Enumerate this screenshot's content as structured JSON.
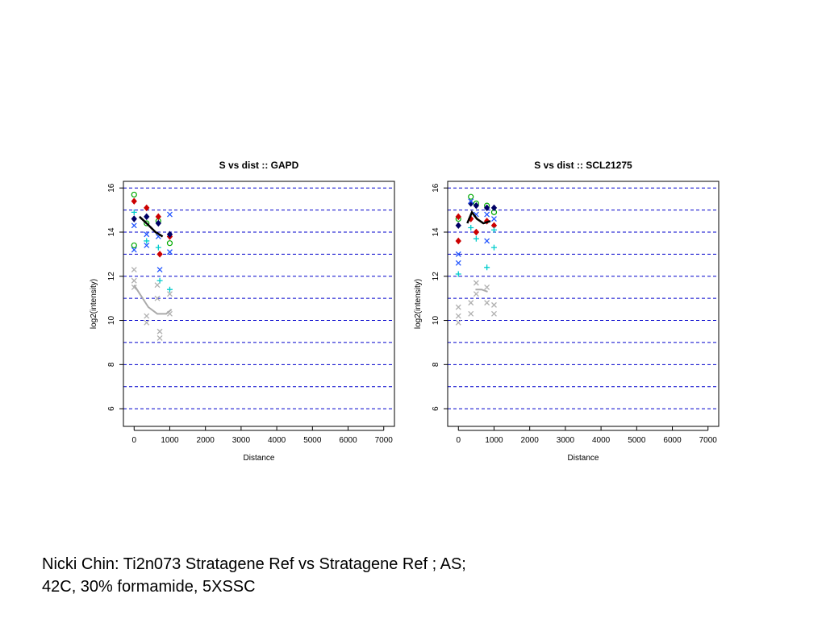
{
  "caption": {
    "line1": "Nicki Chin: Ti2n073 Stratagene Ref vs Stratagene Ref ; AS;",
    "line2": "42C, 30% formamide, 5XSSC"
  },
  "colors": {
    "gridline": "#0000cc",
    "lowess_main": "#000000",
    "lowess_gray": "#aaaaaa",
    "gray_points": "#b0b0b0"
  },
  "chart_data": [
    {
      "type": "scatter",
      "title": "S vs dist :: GAPD",
      "xlabel": "Distance",
      "ylabel": "log2(intensity)",
      "xlim": [
        -300,
        7300
      ],
      "ylim": [
        5.2,
        16.3
      ],
      "xticks": [
        0,
        1000,
        2000,
        3000,
        4000,
        5000,
        6000,
        7000
      ],
      "yticks": [
        6,
        8,
        10,
        12,
        14,
        16
      ],
      "grid_y": [
        6,
        7,
        8,
        9,
        10,
        11,
        12,
        13,
        14,
        15,
        16
      ],
      "series": [
        {
          "color": "#00aa00",
          "marker": "circle",
          "points": [
            [
              0,
              15.7
            ],
            [
              0,
              13.4
            ],
            [
              350,
              14.4
            ],
            [
              680,
              14.5
            ],
            [
              1000,
              13.5
            ]
          ]
        },
        {
          "color": "#cc0000",
          "marker": "diamond",
          "points": [
            [
              0,
              15.4
            ],
            [
              350,
              15.1
            ],
            [
              680,
              14.7
            ],
            [
              720,
              13.0
            ],
            [
              1000,
              13.8
            ]
          ]
        },
        {
          "color": "#000066",
          "marker": "diamond",
          "points": [
            [
              0,
              14.6
            ],
            [
              350,
              14.7
            ],
            [
              680,
              14.4
            ],
            [
              1000,
              13.9
            ]
          ]
        },
        {
          "color": "#2255ff",
          "marker": "x",
          "points": [
            [
              0,
              14.3
            ],
            [
              0,
              13.2
            ],
            [
              350,
              13.9
            ],
            [
              350,
              13.4
            ],
            [
              680,
              13.8
            ],
            [
              720,
              12.3
            ],
            [
              1000,
              14.8
            ],
            [
              1000,
              13.1
            ]
          ]
        },
        {
          "color": "#00cccc",
          "marker": "plus",
          "points": [
            [
              0,
              14.9
            ],
            [
              350,
              13.6
            ],
            [
              680,
              13.3
            ],
            [
              720,
              11.8
            ],
            [
              1000,
              11.4
            ]
          ]
        },
        {
          "color": "#b0b0b0",
          "marker": "x",
          "points": [
            [
              0,
              12.3
            ],
            [
              0,
              11.8
            ],
            [
              0,
              11.5
            ],
            [
              350,
              10.2
            ],
            [
              350,
              9.9
            ],
            [
              650,
              11.6
            ],
            [
              650,
              11.0
            ],
            [
              720,
              9.5
            ],
            [
              720,
              9.2
            ],
            [
              1000,
              11.2
            ],
            [
              1000,
              10.3
            ]
          ]
        }
      ],
      "lowess": [
        {
          "color": "#000000",
          "points": [
            [
              150,
              14.7
            ],
            [
              350,
              14.4
            ],
            [
              600,
              14.0
            ],
            [
              800,
              13.8
            ]
          ]
        },
        {
          "color": "#aaaaaa",
          "points": [
            [
              0,
              11.6
            ],
            [
              200,
              11.1
            ],
            [
              400,
              10.6
            ],
            [
              650,
              10.3
            ],
            [
              900,
              10.3
            ],
            [
              1050,
              10.5
            ]
          ]
        }
      ]
    },
    {
      "type": "scatter",
      "title": "S vs dist :: SCL21275",
      "xlabel": "Distance",
      "ylabel": "log2(intensity)",
      "xlim": [
        -300,
        7300
      ],
      "ylim": [
        5.2,
        16.3
      ],
      "xticks": [
        0,
        1000,
        2000,
        3000,
        4000,
        5000,
        6000,
        7000
      ],
      "yticks": [
        6,
        8,
        10,
        12,
        14,
        16
      ],
      "grid_y": [
        6,
        7,
        8,
        9,
        10,
        11,
        12,
        13,
        14,
        15,
        16
      ],
      "series": [
        {
          "color": "#00aa00",
          "marker": "circle",
          "points": [
            [
              0,
              14.6
            ],
            [
              350,
              15.6
            ],
            [
              500,
              15.3
            ],
            [
              800,
              15.2
            ],
            [
              1000,
              14.9
            ]
          ]
        },
        {
          "color": "#cc0000",
          "marker": "diamond",
          "points": [
            [
              0,
              14.7
            ],
            [
              0,
              13.6
            ],
            [
              350,
              14.6
            ],
            [
              500,
              14.0
            ],
            [
              800,
              14.5
            ],
            [
              1000,
              14.3
            ]
          ]
        },
        {
          "color": "#000066",
          "marker": "diamond",
          "points": [
            [
              0,
              14.3
            ],
            [
              350,
              15.3
            ],
            [
              500,
              15.2
            ],
            [
              800,
              15.1
            ],
            [
              1000,
              15.1
            ]
          ]
        },
        {
          "color": "#2255ff",
          "marker": "x",
          "points": [
            [
              0,
              13.0
            ],
            [
              0,
              12.6
            ],
            [
              350,
              15.4
            ],
            [
              500,
              14.8
            ],
            [
              800,
              13.6
            ],
            [
              800,
              14.8
            ],
            [
              1000,
              14.6
            ]
          ]
        },
        {
          "color": "#00cccc",
          "marker": "plus",
          "points": [
            [
              0,
              12.1
            ],
            [
              350,
              14.2
            ],
            [
              500,
              13.7
            ],
            [
              800,
              12.4
            ],
            [
              1000,
              14.1
            ],
            [
              1000,
              13.3
            ]
          ]
        },
        {
          "color": "#b0b0b0",
          "marker": "x",
          "points": [
            [
              0,
              10.6
            ],
            [
              0,
              10.2
            ],
            [
              0,
              9.9
            ],
            [
              350,
              10.8
            ],
            [
              350,
              10.3
            ],
            [
              500,
              11.7
            ],
            [
              500,
              11.2
            ],
            [
              800,
              11.5
            ],
            [
              800,
              10.8
            ],
            [
              1000,
              10.7
            ],
            [
              1000,
              10.3
            ]
          ]
        }
      ],
      "lowess": [
        {
          "color": "#000000",
          "points": [
            [
              250,
              14.4
            ],
            [
              380,
              14.9
            ],
            [
              520,
              14.6
            ],
            [
              700,
              14.4
            ],
            [
              900,
              14.5
            ]
          ]
        },
        {
          "color": "#aaaaaa",
          "points": [
            [
              480,
              11.4
            ],
            [
              650,
              11.4
            ],
            [
              820,
              11.3
            ]
          ]
        }
      ]
    }
  ]
}
